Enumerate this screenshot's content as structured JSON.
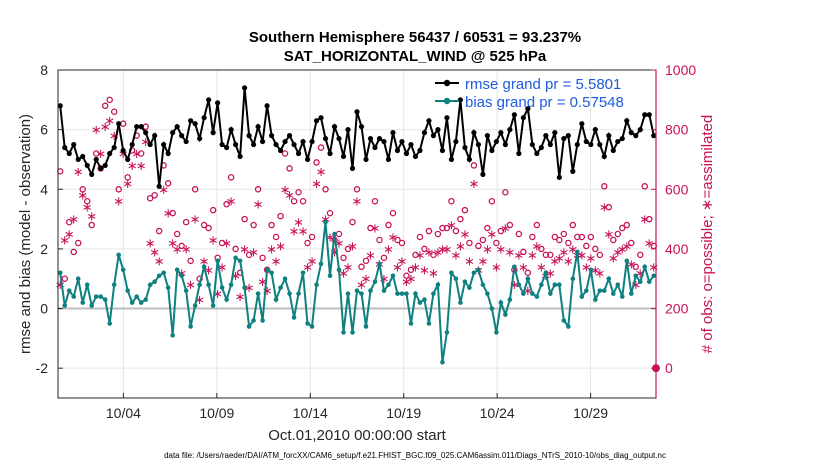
{
  "chart_data": {
    "type": "line",
    "title": "Southern Hemisphere 56437 / 60531 = 93.237%",
    "subtitle": "SAT_HORIZONTAL_WIND @ 525 hPa",
    "xlabel": "Oct.01,2010 00:00:00 start",
    "ylabel_left": "rmse and bias (model - observation)",
    "ylabel_right": "# of obs: o=possible; ∗=assimilated",
    "ylim_left": [
      -3,
      8
    ],
    "ylim_right": [
      -100,
      1000
    ],
    "xlim": [
      0.5,
      32.5
    ],
    "yticks_left": [
      "-2",
      "0",
      "2",
      "4",
      "6",
      "8"
    ],
    "yticks_right": [
      "0",
      "200",
      "400",
      "600",
      "800",
      "1000"
    ],
    "xtick_labels": [
      "10/04",
      "10/09",
      "10/14",
      "10/19",
      "10/24",
      "10/29"
    ],
    "xtick_days": [
      4,
      9,
      14,
      19,
      24,
      29
    ],
    "footer": "data file: /Users/raeder/DAI/ATM_forcXX/CAM6_setup/f.e21.FHIST_BGC.f09_025.CAM6assim.011/Diags_NTrS_2010-10/obs_diag_output.nc",
    "colors": {
      "rmse": "#000000",
      "bias": "#0e8080",
      "obs": "#c8135a",
      "zero": "#bdbdbd",
      "grid": "#e6e6e6",
      "legend_text": "#1f5be0"
    },
    "series": [
      {
        "name": "rmse grand pr = 5.5801",
        "values": [
          6.8,
          5.4,
          5.2,
          5.5,
          5.0,
          5.1,
          4.8,
          4.5,
          5.0,
          4.7,
          4.8,
          5.2,
          5.4,
          6.2,
          5.3,
          5.0,
          5.5,
          6.1,
          6.1,
          5.9,
          5.5,
          5.8,
          4.1,
          5.5,
          5.2,
          5.9,
          6.1,
          5.8,
          5.6,
          6.3,
          6.2,
          5.7,
          6.4,
          7.0,
          5.9,
          6.9,
          5.5,
          5.4,
          6.0,
          5.5,
          5.1,
          7.4,
          5.8,
          5.5,
          6.1,
          5.6,
          6.8,
          5.8,
          5.5,
          5.3,
          5.6,
          5.8,
          5.5,
          5.2,
          5.6,
          5.0,
          5.6,
          6.3,
          6.4,
          5.7,
          5.2,
          6.1,
          5.7,
          5.1,
          6.0,
          4.7,
          6.6,
          6.1,
          5.0,
          5.7,
          5.4,
          5.7,
          5.6,
          5.0,
          5.9,
          5.3,
          5.6,
          5.2,
          5.5,
          5.1,
          5.3,
          5.9,
          6.3,
          5.8,
          6.0,
          5.3,
          6.4,
          5.0,
          5.6,
          7.0,
          5.4,
          5.0,
          5.9,
          5.5,
          4.5,
          5.8,
          5.3,
          5.6,
          5.9,
          5.5,
          6.0,
          6.5,
          5.2,
          6.4,
          6.7,
          5.5,
          5.2,
          5.4,
          5.8,
          5.5,
          5.9,
          4.4,
          5.7,
          5.8,
          4.6,
          5.5,
          6.2,
          5.6,
          5.5,
          6.0,
          5.5,
          5.1,
          5.8,
          5.3,
          5.6,
          5.7,
          6.3,
          5.9,
          5.8,
          6.0,
          6.5,
          6.5,
          5.8
        ]
      },
      {
        "name": "bias grand pr = 0.57548",
        "values": [
          1.2,
          0.1,
          0.6,
          0.4,
          1.0,
          0.2,
          0.8,
          0.1,
          0.4,
          0.4,
          0.3,
          -0.5,
          0.8,
          1.8,
          1.3,
          0.6,
          0.2,
          0.4,
          0.2,
          0.3,
          0.8,
          0.9,
          1.1,
          1.2,
          0.7,
          -0.9,
          1.3,
          1.1,
          0.6,
          -0.6,
          0.1,
          0.8,
          1.4,
          0.8,
          0.1,
          1.6,
          0.7,
          0.3,
          0.8,
          1.7,
          1.6,
          0.7,
          -0.6,
          -0.4,
          0.5,
          -0.4,
          1.3,
          1.2,
          0.3,
          0.7,
          1.0,
          0.5,
          -0.3,
          0.5,
          1.2,
          -0.5,
          -0.6,
          0.8,
          1.5,
          2.9,
          1.1,
          2.5,
          1.3,
          -0.8,
          0.5,
          -0.8,
          0.6,
          0.5,
          -0.6,
          0.6,
          0.9,
          1.5,
          0.6,
          0.8,
          1.1,
          0.5,
          0.5,
          0.5,
          -0.5,
          0.5,
          0.2,
          0.3,
          -0.5,
          0.5,
          0.8,
          -1.8,
          -0.8,
          1.2,
          1.0,
          0.2,
          0.9,
          0.7,
          1.2,
          1.3,
          0.8,
          0.5,
          0.0,
          -0.8,
          0.2,
          -0.2,
          0.3,
          1.4,
          0.8,
          0.5,
          1.0,
          0.5,
          0.4,
          0.8,
          1.2,
          0.5,
          0.8,
          0.8,
          -0.4,
          -0.6,
          1.0,
          1.9,
          0.4,
          0.6,
          1.3,
          0.3,
          0.6,
          0.6,
          1.0,
          0.5,
          0.8,
          0.4,
          1.6,
          0.5,
          1.1,
          0.9,
          1.4,
          0.9,
          1.1
        ]
      },
      {
        "name": "possible",
        "values": [
          660,
          300,
          490,
          390,
          420,
          600,
          560,
          480,
          720,
          670,
          880,
          900,
          860,
          600,
          820,
          640,
          730,
          780,
          720,
          810,
          570,
          580,
          460,
          680,
          620,
          520,
          450,
          410,
          490,
          360,
          600,
          300,
          480,
          470,
          530,
          370,
          420,
          550,
          640,
          400,
          320,
          500,
          380,
          480,
          600,
          370,
          330,
          480,
          440,
          510,
          720,
          670,
          560,
          590,
          560,
          420,
          440,
          690,
          740,
          600,
          520,
          430,
          450,
          370,
          400,
          490,
          600,
          340,
          360,
          470,
          560,
          430,
          370,
          480,
          520,
          430,
          420,
          310,
          330,
          380,
          440,
          400,
          460,
          380,
          450,
          470,
          470,
          560,
          460,
          500,
          530,
          420,
          680,
          410,
          430,
          470,
          560,
          420,
          460,
          590,
          480,
          330,
          450,
          390,
          320,
          440,
          480,
          400,
          380,
          380,
          440,
          430,
          450,
          420,
          480,
          440,
          440,
          410,
          440,
          400,
          380,
          610,
          540,
          430,
          450,
          470,
          480,
          420,
          340,
          380,
          610,
          500,
          410
        ]
      },
      {
        "name": "assimilated",
        "values": [
          280,
          430,
          450,
          500,
          660,
          580,
          540,
          510,
          800,
          720,
          810,
          830,
          780,
          560,
          720,
          620,
          680,
          720,
          680,
          760,
          420,
          390,
          360,
          600,
          520,
          420,
          400,
          320,
          400,
          280,
          500,
          230,
          360,
          330,
          430,
          250,
          340,
          420,
          560,
          310,
          240,
          400,
          270,
          390,
          550,
          290,
          260,
          400,
          360,
          410,
          600,
          580,
          460,
          490,
          460,
          340,
          360,
          620,
          660,
          500,
          440,
          390,
          420,
          320,
          340,
          410,
          560,
          280,
          300,
          380,
          470,
          350,
          300,
          400,
          440,
          340,
          360,
          290,
          300,
          340,
          380,
          330,
          390,
          320,
          390,
          400,
          400,
          480,
          380,
          410,
          450,
          360,
          620,
          330,
          360,
          400,
          450,
          340,
          400,
          470,
          390,
          280,
          380,
          340,
          260,
          380,
          410,
          340,
          310,
          320,
          360,
          370,
          390,
          360,
          400,
          380,
          380,
          340,
          370,
          330,
          320,
          540,
          450,
          370,
          390,
          400,
          410,
          350,
          280,
          320,
          500,
          420,
          340
        ]
      }
    ]
  }
}
